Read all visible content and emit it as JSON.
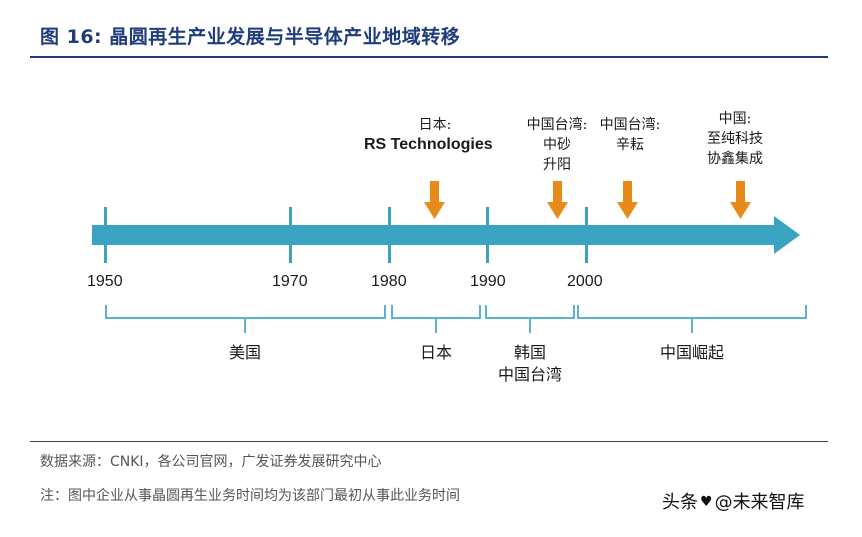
{
  "title": "图 16: 晶圆再生产业发展与半导体产业地域转移",
  "timeline": {
    "years": [
      "1950",
      "1970",
      "1980",
      "1990",
      "2000"
    ],
    "eras": [
      {
        "lines": [
          "美国"
        ]
      },
      {
        "lines": [
          "日本"
        ]
      },
      {
        "lines": [
          "韩国",
          "中国台湾"
        ]
      },
      {
        "lines": [
          "中国崛起"
        ]
      }
    ],
    "companies": [
      {
        "region": "日本:",
        "name": "RS Technologies"
      },
      {
        "region": "中国台湾:",
        "name_lines": [
          "中砂",
          "升阳"
        ]
      },
      {
        "region": "中国台湾:",
        "name_lines": [
          "辛耘"
        ]
      },
      {
        "region": "中国:",
        "name_lines": [
          "至纯科技",
          "协鑫集成"
        ]
      }
    ]
  },
  "colors": {
    "title": "#1f3d7a",
    "timeline_bar": "#3ba3c2",
    "arrow_marker": "#e88a1a",
    "bracket": "#5bb4cf"
  },
  "footer": {
    "source": "数据来源：CNKI，各公司官网，广发证券发展研究中心",
    "note": "注：图中企业从事晶圆再生业务时间均为该部门最初从事此业务时间"
  },
  "watermark": {
    "prefix": "头条",
    "handle": "@未来智库"
  }
}
